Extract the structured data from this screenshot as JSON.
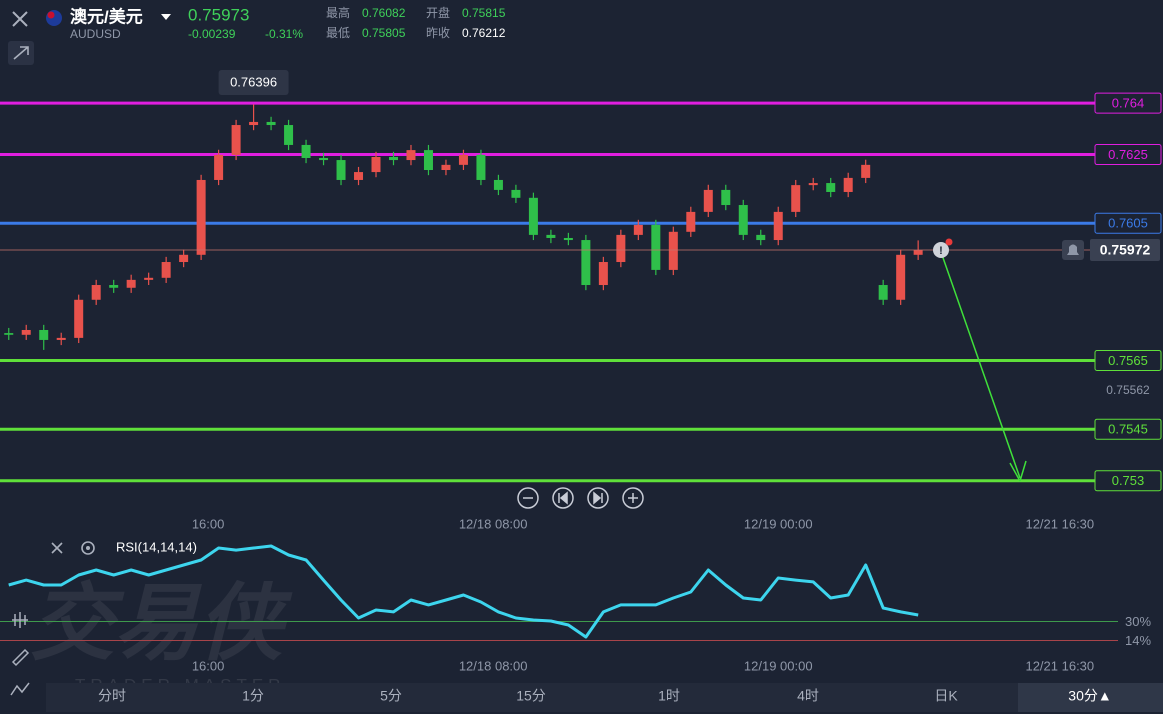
{
  "header": {
    "symbol": "澳元/美元",
    "code": "AUDUSD",
    "price": "0.75973",
    "change": "-0.00239",
    "change_pct": "-0.31%",
    "stats": [
      {
        "label": "最高",
        "value": "0.76082"
      },
      {
        "label": "开盘",
        "value": "0.75815"
      },
      {
        "label": "最低",
        "value": "0.75805"
      },
      {
        "label": "昨收",
        "value": "0.76212"
      }
    ]
  },
  "watermark": {
    "title": "交易侠",
    "subtitle": "TRADER MASTER"
  },
  "timeframes": [
    "分时",
    "1分",
    "5分",
    "15分",
    "1时",
    "4时",
    "日K",
    "30分▲"
  ],
  "chart_data": [
    {
      "type": "candlestick",
      "open": [
        0.7573,
        0.75725,
        0.75739,
        0.7571,
        0.75716,
        0.75827,
        0.7587,
        0.75862,
        0.75885,
        0.75891,
        0.75937,
        0.75958,
        0.76176,
        0.76249,
        0.76336,
        0.76345,
        0.76336,
        0.76278,
        0.7624,
        0.76234,
        0.76176,
        0.76199,
        0.76243,
        0.76234,
        0.76263,
        0.76205,
        0.7622,
        0.76249,
        0.76176,
        0.76147,
        0.76124,
        0.76016,
        0.76007,
        0.76001,
        0.7587,
        0.75937,
        0.76016,
        0.76045,
        0.75914,
        0.76025,
        0.76083,
        0.76147,
        0.76103,
        0.76016,
        0.76001,
        0.76083,
        0.76161,
        0.76167,
        0.76141,
        0.76182,
        0.7587,
        0.75827,
        0.75958
      ],
      "high": [
        0.75745,
        0.75754,
        0.75754,
        0.75731,
        0.75842,
        0.75885,
        0.75885,
        0.759,
        0.75906,
        0.75952,
        0.75973,
        0.76191,
        0.76264,
        0.76351,
        0.76396,
        0.7636,
        0.76351,
        0.76293,
        0.76255,
        0.76249,
        0.76214,
        0.76258,
        0.76258,
        0.76278,
        0.76278,
        0.76235,
        0.76264,
        0.76264,
        0.76191,
        0.76162,
        0.76139,
        0.76031,
        0.76022,
        0.76016,
        0.75952,
        0.76031,
        0.7606,
        0.7606,
        0.7604,
        0.76098,
        0.76162,
        0.76162,
        0.76118,
        0.76031,
        0.76098,
        0.76176,
        0.76182,
        0.76182,
        0.76197,
        0.76235,
        0.75885,
        0.75973,
        0.76
      ],
      "low": [
        0.7571,
        0.7571,
        0.75681,
        0.75695,
        0.75701,
        0.75812,
        0.75847,
        0.75847,
        0.7587,
        0.75876,
        0.75922,
        0.75943,
        0.76161,
        0.76234,
        0.76321,
        0.76321,
        0.76263,
        0.76225,
        0.76219,
        0.76161,
        0.76161,
        0.76184,
        0.76219,
        0.76219,
        0.7619,
        0.7619,
        0.76205,
        0.76161,
        0.76132,
        0.76109,
        0.76001,
        0.75992,
        0.75986,
        0.75855,
        0.75855,
        0.75922,
        0.76001,
        0.75899,
        0.75899,
        0.7601,
        0.76068,
        0.76088,
        0.76001,
        0.75986,
        0.75986,
        0.76068,
        0.76146,
        0.76126,
        0.76126,
        0.76167,
        0.75812,
        0.75812,
        0.75943
      ],
      "close": [
        0.75725,
        0.75739,
        0.7571,
        0.75716,
        0.75827,
        0.7587,
        0.75862,
        0.75885,
        0.75891,
        0.75937,
        0.75958,
        0.76176,
        0.76249,
        0.76336,
        0.76345,
        0.76336,
        0.76278,
        0.7624,
        0.76234,
        0.76176,
        0.76199,
        0.76243,
        0.76234,
        0.76263,
        0.76205,
        0.7622,
        0.76249,
        0.76176,
        0.76147,
        0.76124,
        0.76016,
        0.76007,
        0.76001,
        0.7587,
        0.75937,
        0.76016,
        0.76045,
        0.75914,
        0.76025,
        0.76083,
        0.76147,
        0.76103,
        0.76016,
        0.76001,
        0.76083,
        0.76161,
        0.76167,
        0.76141,
        0.76182,
        0.7622,
        0.75827,
        0.75958,
        0.75972
      ],
      "colors": {
        "up": "#e8524c",
        "down": "#2fbf4a"
      },
      "levels": [
        {
          "value": 0.764,
          "color": "#e01ee0"
        },
        {
          "value": 0.7625,
          "color": "#e01ee0"
        },
        {
          "value": 0.7605,
          "color": "#3b7be8"
        },
        {
          "value": 0.7565,
          "color": "#5fe03a"
        },
        {
          "value": 0.7545,
          "color": "#5fe03a"
        },
        {
          "value": 0.753,
          "color": "#5fe03a"
        }
      ],
      "ylim": [
        0.7527,
        0.7654
      ],
      "yticks": [
        0.75562
      ],
      "xlim": [
        -0.5,
        66
      ],
      "xticks": [
        {
          "value": 11.4,
          "label": "16:00"
        },
        {
          "value": 27.7,
          "label": "12/18 08:00"
        },
        {
          "value": 44,
          "label": "12/19 00:00"
        },
        {
          "value": 60.1,
          "label": "12/21 16:30"
        }
      ]
    },
    {
      "type": "line",
      "title": "RSI(14,14,14)",
      "color": "#3dd5ee",
      "values": [
        60.8,
        65.0,
        60.8,
        60.8,
        69.3,
        73.5,
        69.3,
        73.5,
        69.3,
        73.5,
        77.7,
        81.9,
        92.0,
        90.3,
        92.0,
        93.7,
        86.1,
        81.9,
        65.0,
        48.2,
        33.0,
        39.7,
        38.1,
        48.2,
        44.0,
        48.2,
        52.4,
        46.5,
        38.1,
        33.0,
        31.3,
        30.5,
        27.1,
        17.0,
        38.1,
        44.0,
        44.0,
        44.0,
        49.9,
        54.9,
        73.5,
        60.8,
        49.9,
        48.2,
        66.7,
        65.0,
        63.4,
        49.9,
        52.4,
        77.7,
        41.4,
        38.1,
        35.5
      ],
      "ylim": [
        6,
        103
      ],
      "yticks": [
        {
          "value": 30,
          "label": "30%"
        },
        {
          "value": 14,
          "label": "14%"
        }
      ],
      "ytick_colors": [
        "#3e9a4c",
        "#a8444a"
      ]
    }
  ]
}
